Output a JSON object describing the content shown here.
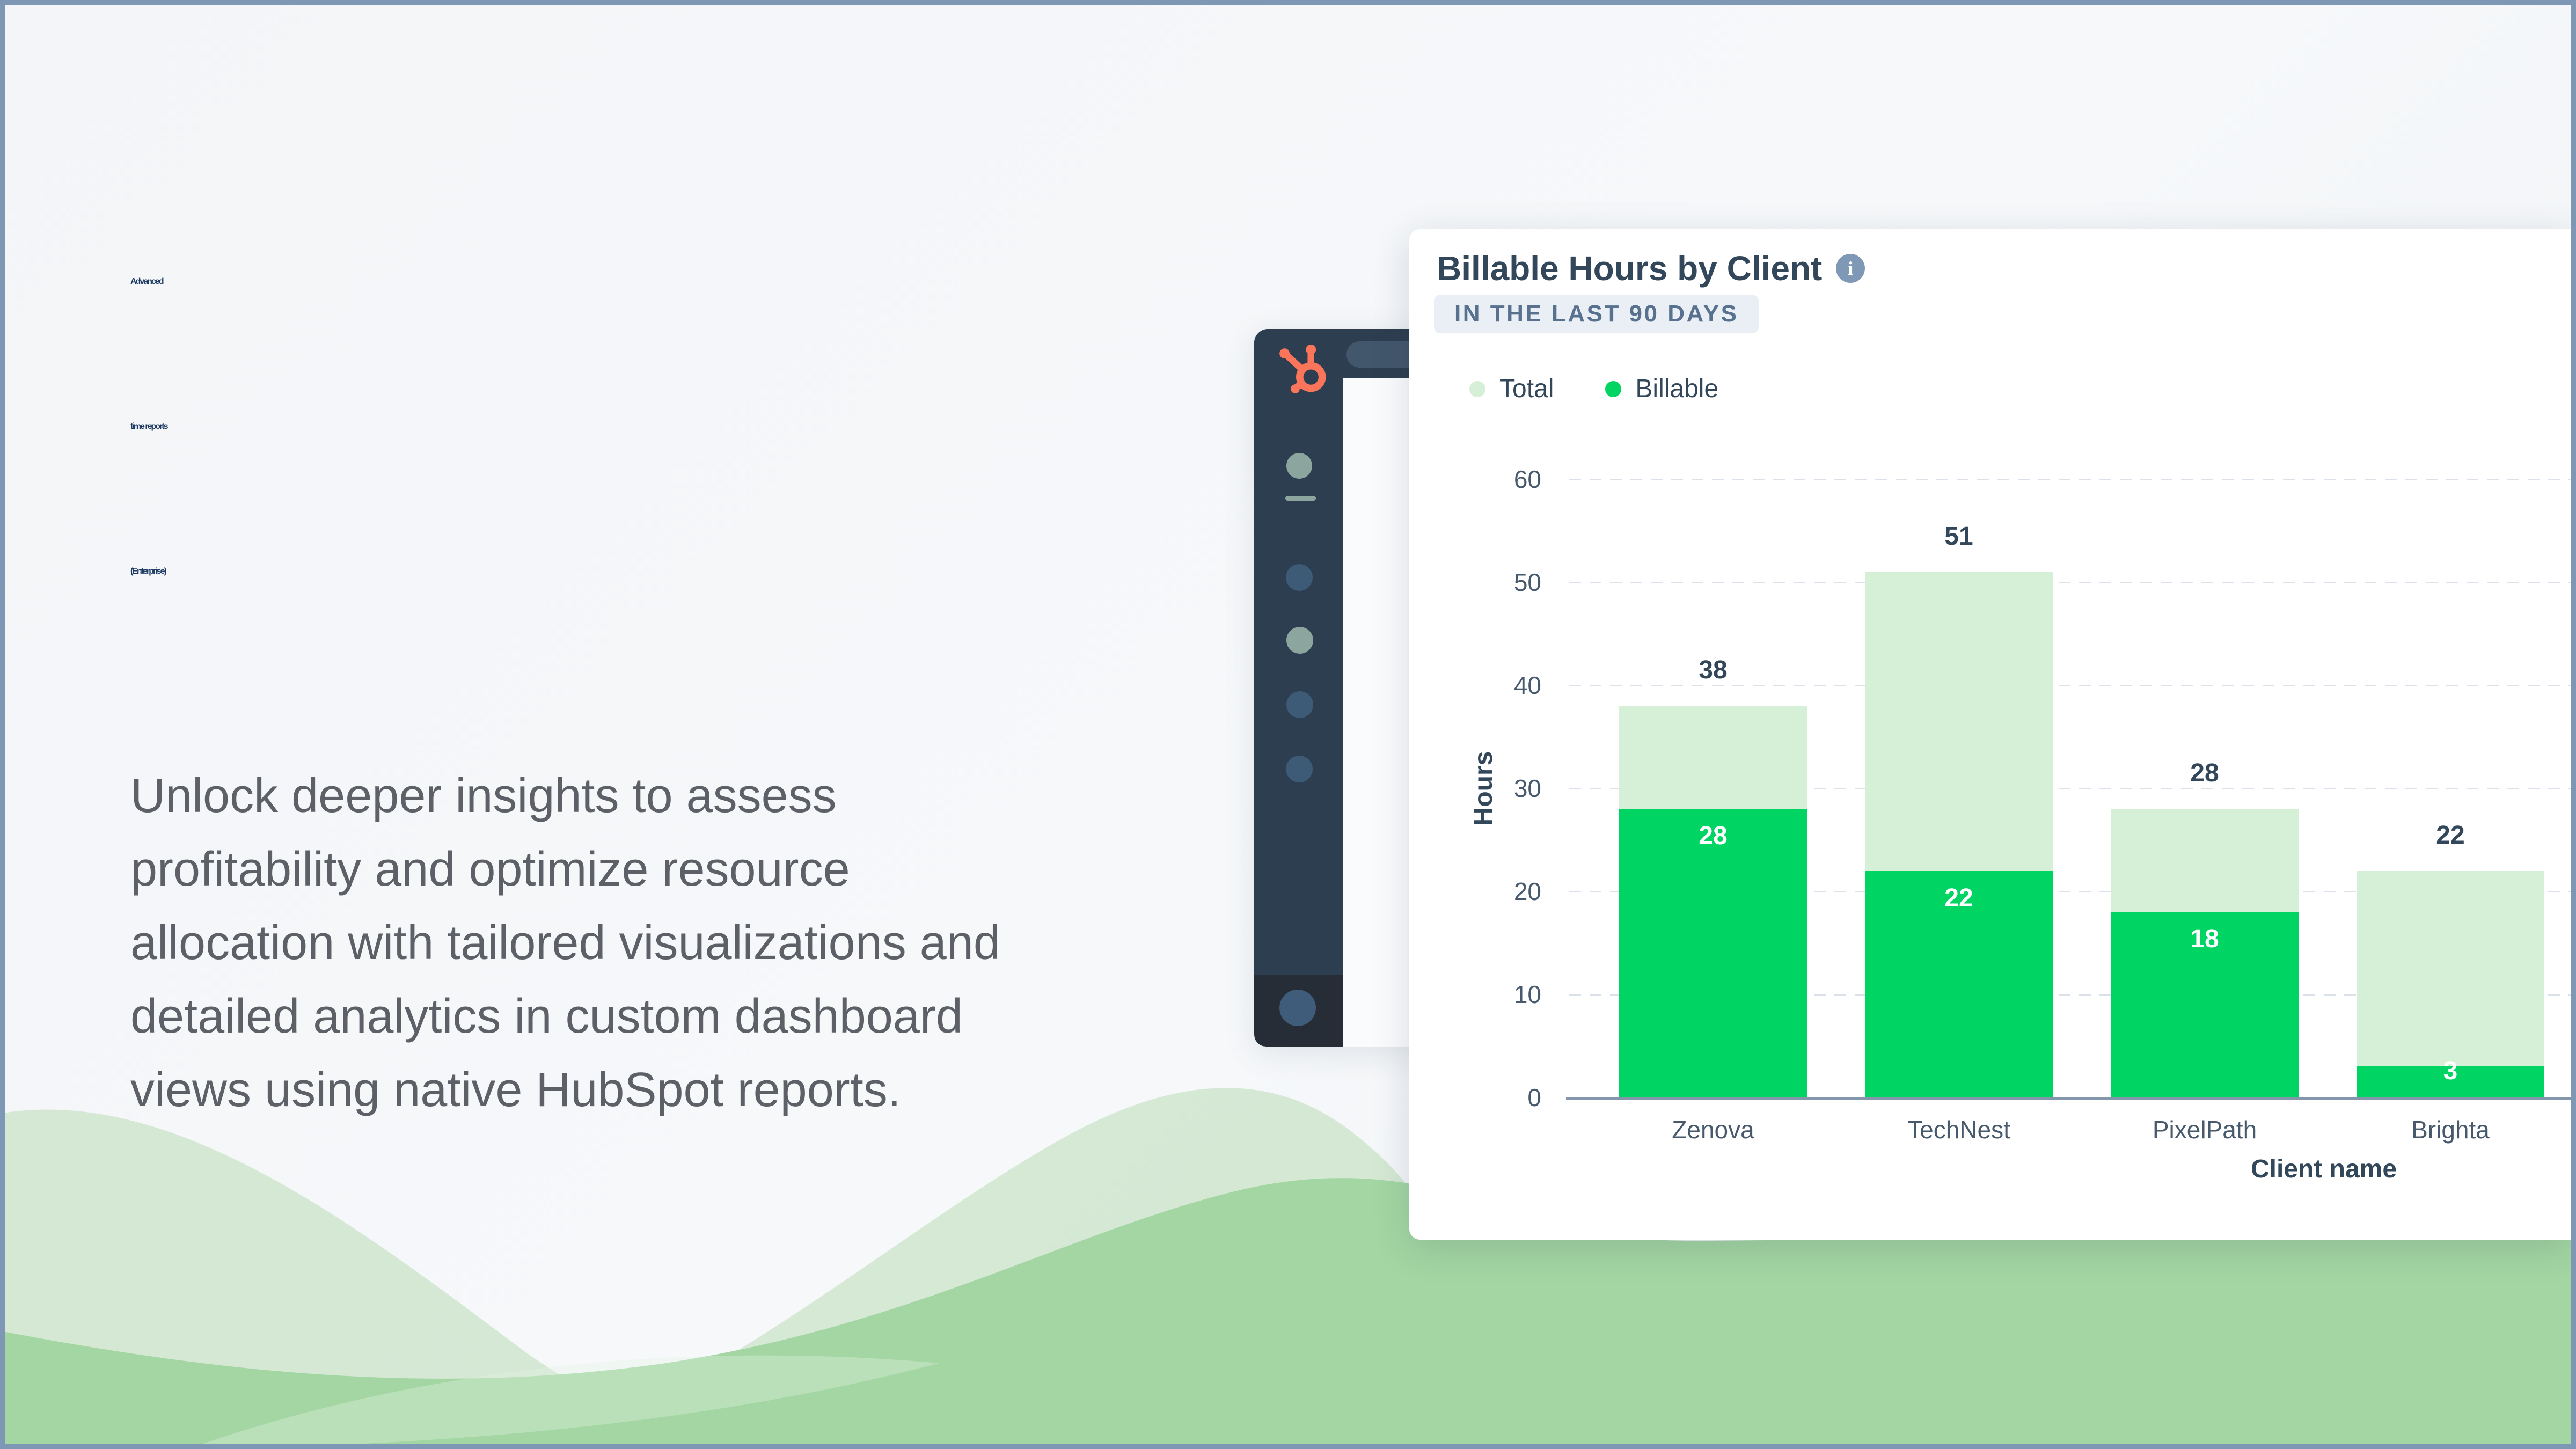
{
  "page": {
    "background": "#f4f6f9",
    "frame_border_color": "#7e97b5"
  },
  "hero": {
    "title_lines": [
      "Advanced",
      "time reports",
      "(Enterprise)"
    ],
    "title_color": "#1e3a63",
    "description_lines": [
      "Unlock deeper insights to assess",
      "profitability and optimize resource",
      "allocation with tailored visualizations and",
      "detailed analytics in custom dashboard",
      "views using native HubSpot reports."
    ],
    "description_color": "#5d6167"
  },
  "mockup": {
    "logo_icon": "hubspot-sprocket",
    "logo_color": "#fa755a",
    "sidebar_color": "#2d3e50",
    "accent_dot_color": "#8ca69f",
    "dot_color": "#3d5a77",
    "footer_color": "#262d37",
    "avatar_color": "#3f5c7a"
  },
  "card": {
    "title": "Billable Hours by Client",
    "info_icon": "i",
    "badge": "IN THE LAST 90 DAYS",
    "badge_bg": "#e9eff5",
    "badge_text_color": "#58718f"
  },
  "chart_data": {
    "type": "bar",
    "variant": "overlay-stacked",
    "title": "Billable Hours by Client",
    "subtitle": "IN THE LAST 90 DAYS",
    "categories": [
      "Zenova",
      "TechNest",
      "PixelPath",
      "Brighta"
    ],
    "series": [
      {
        "name": "Total",
        "values": [
          38,
          51,
          28,
          22
        ],
        "color": "#d6f0d7"
      },
      {
        "name": "Billable",
        "values": [
          28,
          22,
          18,
          3
        ],
        "color": "#00d463"
      }
    ],
    "xlabel": "Client name",
    "ylabel": "Hours",
    "ylim": [
      0,
      60
    ],
    "yticks": [
      0,
      10,
      20,
      30,
      40,
      50,
      60
    ],
    "grid": true,
    "gridline_style": "dashed",
    "legend_position": "top-left",
    "value_labels": {
      "total_above_bar": [
        38,
        51,
        28,
        22
      ],
      "billable_inside_bar": [
        28,
        22,
        18,
        3
      ]
    }
  }
}
